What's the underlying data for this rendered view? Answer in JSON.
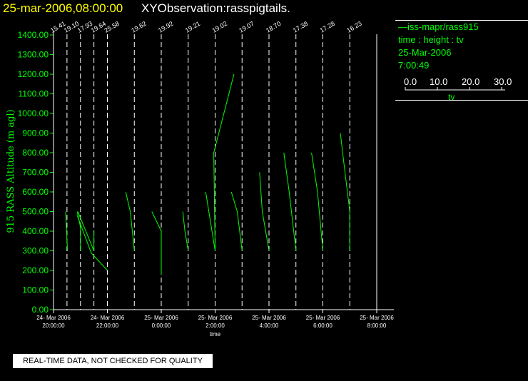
{
  "header": {
    "date_time": "25-mar-2006,08:00:00",
    "observation": "XYObservation:rasspigtails."
  },
  "legend": {
    "station": "iss-mapr/rass915",
    "axes_desc": "time : height : tv",
    "date": "25-Mar-2006",
    "time": "7:00:49",
    "scale_ticks": [
      "0.0",
      "10.0",
      "20.0",
      "30.0"
    ],
    "scale_label": "tv"
  },
  "footer": {
    "quality_note": "REAL-TIME DATA, NOT CHECKED FOR QUALITY"
  },
  "colors": {
    "data": "#00ff00",
    "axes": "#ffffff",
    "title_date": "#ffff00",
    "background": "#000000"
  },
  "chart_data": {
    "type": "line",
    "ylabel": "915 RASS Altitude (m agl)",
    "xlabel": "time",
    "ylim": [
      0,
      1400
    ],
    "y_ticks": [
      "0.00",
      "100.00",
      "200.00",
      "300.00",
      "400.00",
      "500.00",
      "600.00",
      "700.00",
      "800.00",
      "900.00",
      "1000.00",
      "1100.00",
      "1200.00",
      "1300.00",
      "1400.00"
    ],
    "xlim_hours": [
      19.0,
      27.0
    ],
    "x_ticks": [
      {
        "h": 19.0,
        "date": "24- Mar 2006",
        "time": "20:00:00"
      },
      {
        "h": 21.0,
        "date": "24- Mar 2006",
        "time": "22:00:00"
      },
      {
        "h": 23.0,
        "date": "25- Mar 2006",
        "time": "0:00:00"
      },
      {
        "h": 25.0,
        "date": "25- Mar 2006",
        "time": "2:00:00"
      },
      {
        "h": 27.0,
        "date": "25- Mar 2006",
        "time": "4:00:00"
      },
      {
        "h": 29.0,
        "date": "25- Mar 2006",
        "time": "6:00:00"
      },
      {
        "h": 31.0,
        "date": "25- Mar 2006",
        "time": "8:00:00"
      }
    ],
    "profiles": [
      {
        "t": 19.0,
        "label": "15.41",
        "points": []
      },
      {
        "t": 19.5,
        "label": "19.10",
        "points": [
          [
            19.45,
            500
          ],
          [
            19.52,
            300
          ]
        ]
      },
      {
        "t": 20.0,
        "label": "17.93",
        "points": [
          [
            19.88,
            500
          ],
          [
            20.0,
            420
          ],
          [
            20.0,
            300
          ]
        ]
      },
      {
        "t": 20.5,
        "label": "19.64",
        "points": [
          [
            19.9,
            500
          ],
          [
            20.5,
            300
          ],
          [
            20.5,
            400
          ]
        ]
      },
      {
        "t": 21.0,
        "label": "25.58",
        "points": [
          [
            19.88,
            480
          ],
          [
            20.4,
            290
          ],
          [
            21.0,
            200
          ]
        ]
      },
      {
        "t": 22.0,
        "label": "19.62",
        "points": [
          [
            21.68,
            600
          ],
          [
            21.85,
            500
          ],
          [
            22.0,
            300
          ]
        ]
      },
      {
        "t": 23.0,
        "label": "19.92",
        "points": [
          [
            22.65,
            500
          ],
          [
            23.0,
            400
          ],
          [
            23.0,
            300
          ],
          [
            23.0,
            180
          ]
        ]
      },
      {
        "t": 24.0,
        "label": "19.21",
        "points": [
          [
            23.8,
            500
          ],
          [
            23.88,
            400
          ],
          [
            24.0,
            300
          ]
        ]
      },
      {
        "t": 25.0,
        "label": "19.02",
        "points": [
          [
            24.65,
            600
          ],
          [
            25.0,
            300
          ],
          [
            24.95,
            800
          ],
          [
            25.7,
            1200
          ]
        ]
      },
      {
        "t": 26.0,
        "label": "19.07",
        "points": [
          [
            25.6,
            600
          ],
          [
            25.82,
            500
          ],
          [
            26.0,
            300
          ]
        ]
      },
      {
        "t": 27.0,
        "label": "18.70",
        "points": [
          [
            26.65,
            700
          ],
          [
            26.75,
            500
          ],
          [
            27.0,
            300
          ]
        ]
      },
      {
        "t": 28.0,
        "label": "17.38",
        "points": [
          [
            27.55,
            800
          ],
          [
            27.75,
            600
          ],
          [
            28.0,
            300
          ]
        ]
      },
      {
        "t": 29.0,
        "label": "17.28",
        "points": [
          [
            28.58,
            800
          ],
          [
            28.8,
            600
          ],
          [
            29.0,
            300
          ]
        ]
      },
      {
        "t": 30.0,
        "label": "16.23",
        "points": [
          [
            29.65,
            900
          ],
          [
            29.82,
            700
          ],
          [
            30.0,
            500
          ],
          [
            30.0,
            300
          ]
        ]
      }
    ]
  }
}
